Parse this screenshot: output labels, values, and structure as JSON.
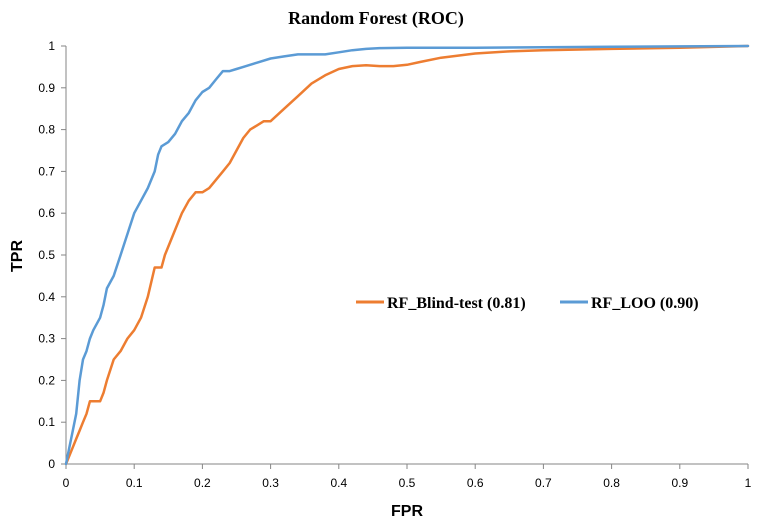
{
  "chart_data": {
    "type": "line",
    "title": "Random Forest (ROC)",
    "xlabel": "FPR",
    "ylabel": "TPR",
    "xlim": [
      0,
      1
    ],
    "ylim": [
      0,
      1
    ],
    "x_ticks": [
      "0",
      "0.1",
      "0.2",
      "0.3",
      "0.4",
      "0.5",
      "0.6",
      "0.7",
      "0.8",
      "0.9",
      "1"
    ],
    "y_ticks": [
      "0",
      "0.1",
      "0.2",
      "0.3",
      "0.4",
      "0.5",
      "0.6",
      "0.7",
      "0.8",
      "0.9",
      "1"
    ],
    "grid": false,
    "legend_position": "center-right",
    "series": [
      {
        "name": "RF_Blind-test (0.81)",
        "color": "#ED7D31",
        "x": [
          0,
          0.005,
          0.01,
          0.015,
          0.02,
          0.025,
          0.03,
          0.035,
          0.04,
          0.05,
          0.055,
          0.06,
          0.07,
          0.08,
          0.09,
          0.1,
          0.11,
          0.12,
          0.13,
          0.14,
          0.145,
          0.15,
          0.16,
          0.17,
          0.18,
          0.19,
          0.2,
          0.21,
          0.22,
          0.23,
          0.24,
          0.25,
          0.26,
          0.27,
          0.28,
          0.29,
          0.3,
          0.32,
          0.34,
          0.36,
          0.38,
          0.4,
          0.42,
          0.44,
          0.46,
          0.48,
          0.5,
          0.52,
          0.55,
          0.6,
          0.65,
          0.7,
          0.8,
          0.9,
          1.0
        ],
        "y": [
          0,
          0.02,
          0.04,
          0.06,
          0.08,
          0.1,
          0.12,
          0.15,
          0.15,
          0.15,
          0.17,
          0.2,
          0.25,
          0.27,
          0.3,
          0.32,
          0.35,
          0.4,
          0.47,
          0.47,
          0.5,
          0.52,
          0.56,
          0.6,
          0.63,
          0.65,
          0.65,
          0.66,
          0.68,
          0.7,
          0.72,
          0.75,
          0.78,
          0.8,
          0.81,
          0.82,
          0.82,
          0.85,
          0.88,
          0.91,
          0.93,
          0.945,
          0.952,
          0.954,
          0.952,
          0.952,
          0.955,
          0.962,
          0.972,
          0.982,
          0.987,
          0.99,
          0.993,
          0.996,
          1.0
        ]
      },
      {
        "name": "RF_LOO (0.90)",
        "color": "#5B9BD5",
        "x": [
          0,
          0.005,
          0.01,
          0.015,
          0.02,
          0.025,
          0.03,
          0.035,
          0.04,
          0.05,
          0.055,
          0.06,
          0.07,
          0.08,
          0.09,
          0.1,
          0.11,
          0.12,
          0.13,
          0.135,
          0.14,
          0.15,
          0.16,
          0.17,
          0.18,
          0.19,
          0.2,
          0.21,
          0.22,
          0.23,
          0.24,
          0.25,
          0.26,
          0.27,
          0.28,
          0.3,
          0.32,
          0.34,
          0.36,
          0.38,
          0.4,
          0.42,
          0.44,
          0.46,
          0.5,
          0.6,
          0.7,
          0.8,
          0.9,
          1.0
        ],
        "y": [
          0,
          0.04,
          0.08,
          0.12,
          0.2,
          0.25,
          0.27,
          0.3,
          0.32,
          0.35,
          0.38,
          0.42,
          0.45,
          0.5,
          0.55,
          0.6,
          0.63,
          0.66,
          0.7,
          0.74,
          0.76,
          0.77,
          0.79,
          0.82,
          0.84,
          0.87,
          0.89,
          0.9,
          0.92,
          0.94,
          0.94,
          0.945,
          0.95,
          0.955,
          0.96,
          0.97,
          0.975,
          0.98,
          0.98,
          0.98,
          0.985,
          0.99,
          0.993,
          0.995,
          0.996,
          0.996,
          0.997,
          0.998,
          0.999,
          1.0
        ]
      }
    ]
  }
}
